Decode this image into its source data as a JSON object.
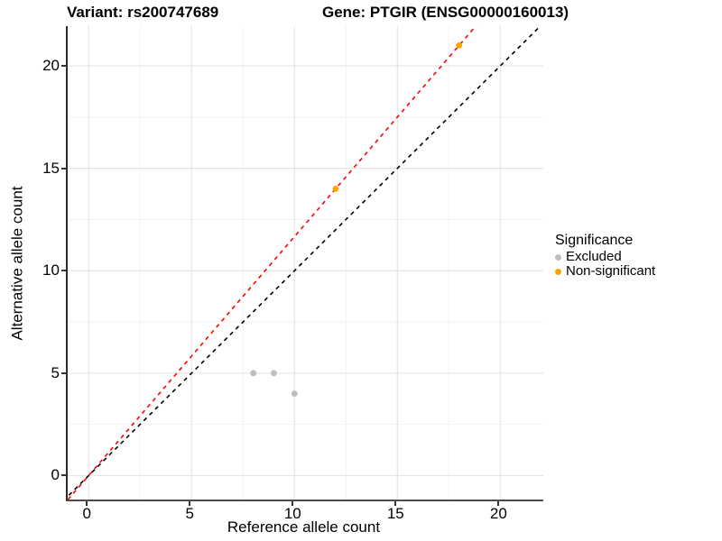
{
  "titles": {
    "variant": "Variant: rs200747689",
    "gene": "Gene: PTGIR (ENSG00000160013)"
  },
  "colors": {
    "excluded_point": "#BDBDBD",
    "non_significant_point": "#FFA500",
    "fit_line": "#FF0000",
    "identity_line": "#000000",
    "grid_major": "#E5E5E5",
    "grid_minor": "#F2F2F2",
    "axis_line": "#333333",
    "text": "#000000"
  },
  "legend": {
    "title": "Significance",
    "items": [
      {
        "label": "Excluded",
        "color": "#BDBDBD"
      },
      {
        "label": "Non-significant",
        "color": "#FFA500"
      }
    ]
  },
  "chart_data": {
    "type": "scatter",
    "title": "Variant: rs200747689 | Gene: PTGIR (ENSG00000160013)",
    "xlabel": "Reference allele count",
    "ylabel": "Alternative allele count",
    "xlim": [
      -1.02,
      22.09
    ],
    "ylim": [
      -1.17,
      21.94
    ],
    "x_ticks": [
      0,
      5,
      10,
      15,
      20
    ],
    "y_ticks": [
      0,
      5,
      10,
      15,
      20
    ],
    "x_minor_ticks": [
      2.5,
      7.5,
      12.5,
      17.5
    ],
    "y_minor_ticks": [
      2.5,
      7.5,
      12.5,
      17.5
    ],
    "grid": true,
    "legend_position": "right",
    "series": [
      {
        "name": "Excluded",
        "color": "#BDBDBD",
        "points": [
          [
            8,
            5
          ],
          [
            9,
            5
          ],
          [
            10,
            4
          ]
        ]
      },
      {
        "name": "Non-significant",
        "color": "#FFA500",
        "points": [
          [
            12,
            14
          ],
          [
            18,
            21
          ]
        ]
      }
    ],
    "lines": [
      {
        "name": "identity-line",
        "color": "#000000",
        "style": "dashed",
        "slope": 1.0,
        "intercept": 0
      },
      {
        "name": "fit-line",
        "color": "#FF0000",
        "style": "dashed",
        "slope": 1.1667,
        "intercept": 0
      }
    ]
  }
}
